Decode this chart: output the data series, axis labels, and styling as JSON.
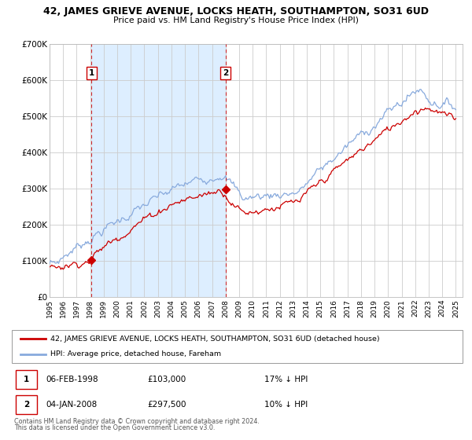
{
  "title": "42, JAMES GRIEVE AVENUE, LOCKS HEATH, SOUTHAMPTON, SO31 6UD",
  "subtitle": "Price paid vs. HM Land Registry's House Price Index (HPI)",
  "legend_line1": "42, JAMES GRIEVE AVENUE, LOCKS HEATH, SOUTHAMPTON, SO31 6UD (detached house)",
  "legend_line2": "HPI: Average price, detached house, Fareham",
  "footnote1": "Contains HM Land Registry data © Crown copyright and database right 2024.",
  "footnote2": "This data is licensed under the Open Government Licence v3.0.",
  "purchase1_date": "06-FEB-1998",
  "purchase1_price": 103000,
  "purchase1_label": "17% ↓ HPI",
  "purchase2_date": "04-JAN-2008",
  "purchase2_price": 297500,
  "purchase2_label": "10% ↓ HPI",
  "purchase1_x": 1998.09,
  "purchase2_x": 2008.01,
  "shaded_region_color": "#ddeeff",
  "red_line_color": "#cc0000",
  "blue_line_color": "#88aadd",
  "dashed_color": "#cc0000",
  "ylim": [
    0,
    700000
  ],
  "xlim_start": 1995,
  "xlim_end": 2025.5,
  "yticks": [
    0,
    100000,
    200000,
    300000,
    400000,
    500000,
    600000,
    700000
  ],
  "ytick_labels": [
    "£0",
    "£100K",
    "£200K",
    "£300K",
    "£400K",
    "£500K",
    "£600K",
    "£700K"
  ],
  "xticks": [
    1995,
    1996,
    1997,
    1998,
    1999,
    2000,
    2001,
    2002,
    2003,
    2004,
    2005,
    2006,
    2007,
    2008,
    2009,
    2010,
    2011,
    2012,
    2013,
    2014,
    2015,
    2016,
    2017,
    2018,
    2019,
    2020,
    2021,
    2022,
    2023,
    2024,
    2025
  ],
  "background_color": "#ffffff",
  "grid_color": "#cccccc"
}
